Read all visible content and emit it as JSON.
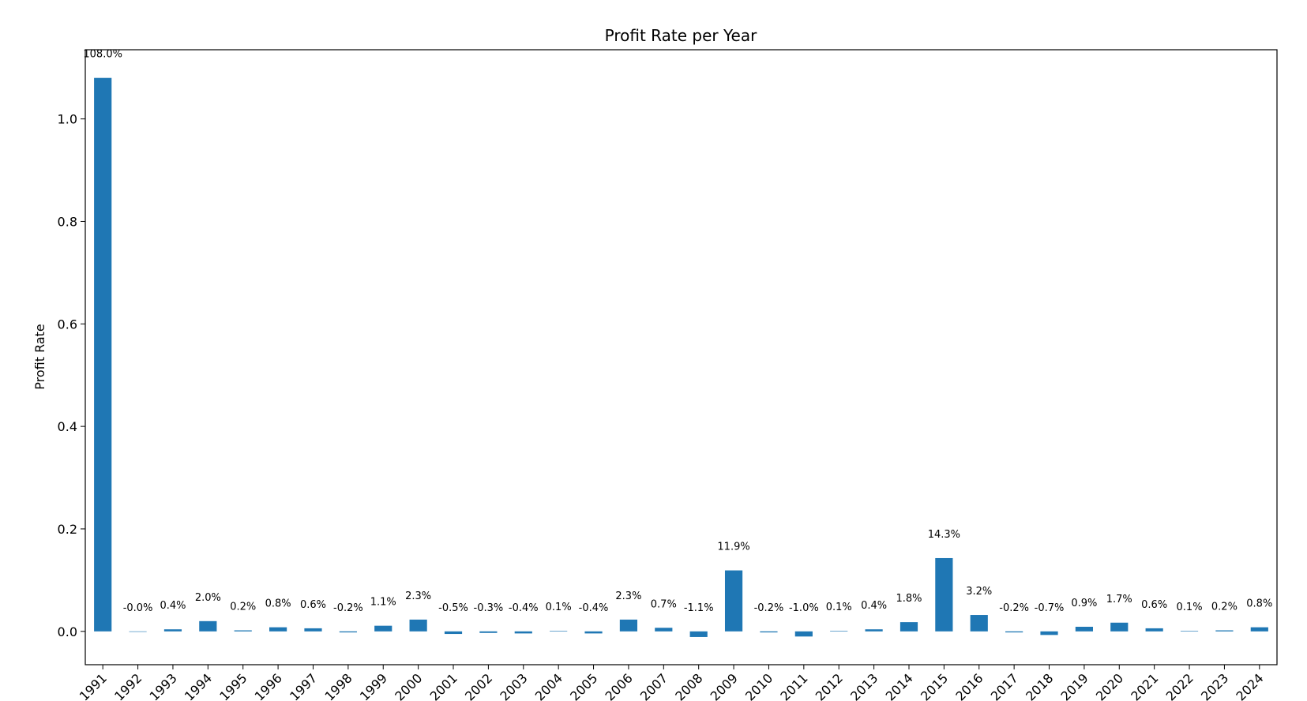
{
  "chart_data": {
    "type": "bar",
    "title": "Profit Rate per Year",
    "xlabel": "",
    "ylabel": "Profit Rate",
    "ylim": [
      -0.065,
      1.135
    ],
    "yticks": [
      0.0,
      0.2,
      0.4,
      0.6,
      0.8,
      1.0
    ],
    "ytick_labels": [
      "0.0",
      "0.2",
      "0.4",
      "0.6",
      "0.8",
      "1.0"
    ],
    "grid": false,
    "legend": "none",
    "bar_color": "#1f77b4",
    "categories": [
      "1991",
      "1992",
      "1993",
      "1994",
      "1995",
      "1996",
      "1997",
      "1998",
      "1999",
      "2000",
      "2001",
      "2002",
      "2003",
      "2004",
      "2005",
      "2006",
      "2007",
      "2008",
      "2009",
      "2010",
      "2011",
      "2012",
      "2013",
      "2014",
      "2015",
      "2016",
      "2017",
      "2018",
      "2019",
      "2020",
      "2021",
      "2022",
      "2023",
      "2024"
    ],
    "values": [
      1.08,
      -0.0001,
      0.004,
      0.02,
      0.002,
      0.008,
      0.006,
      -0.002,
      0.011,
      0.023,
      -0.005,
      -0.003,
      -0.004,
      0.001,
      -0.004,
      0.023,
      0.007,
      -0.011,
      0.119,
      -0.002,
      -0.01,
      0.001,
      0.004,
      0.018,
      0.143,
      0.032,
      -0.002,
      -0.007,
      0.009,
      0.017,
      0.006,
      0.001,
      0.002,
      0.008
    ],
    "data_labels": [
      "108.0%",
      "-0.0%",
      "0.4%",
      "2.0%",
      "0.2%",
      "0.8%",
      "0.6%",
      "-0.2%",
      "1.1%",
      "2.3%",
      "-0.5%",
      "-0.3%",
      "-0.4%",
      "0.1%",
      "-0.4%",
      "2.3%",
      "0.7%",
      "-1.1%",
      "11.9%",
      "-0.2%",
      "-1.0%",
      "0.1%",
      "0.4%",
      "1.8%",
      "14.3%",
      "3.2%",
      "-0.2%",
      "-0.7%",
      "0.9%",
      "1.7%",
      "0.6%",
      "0.1%",
      "0.2%",
      "0.8%"
    ]
  }
}
